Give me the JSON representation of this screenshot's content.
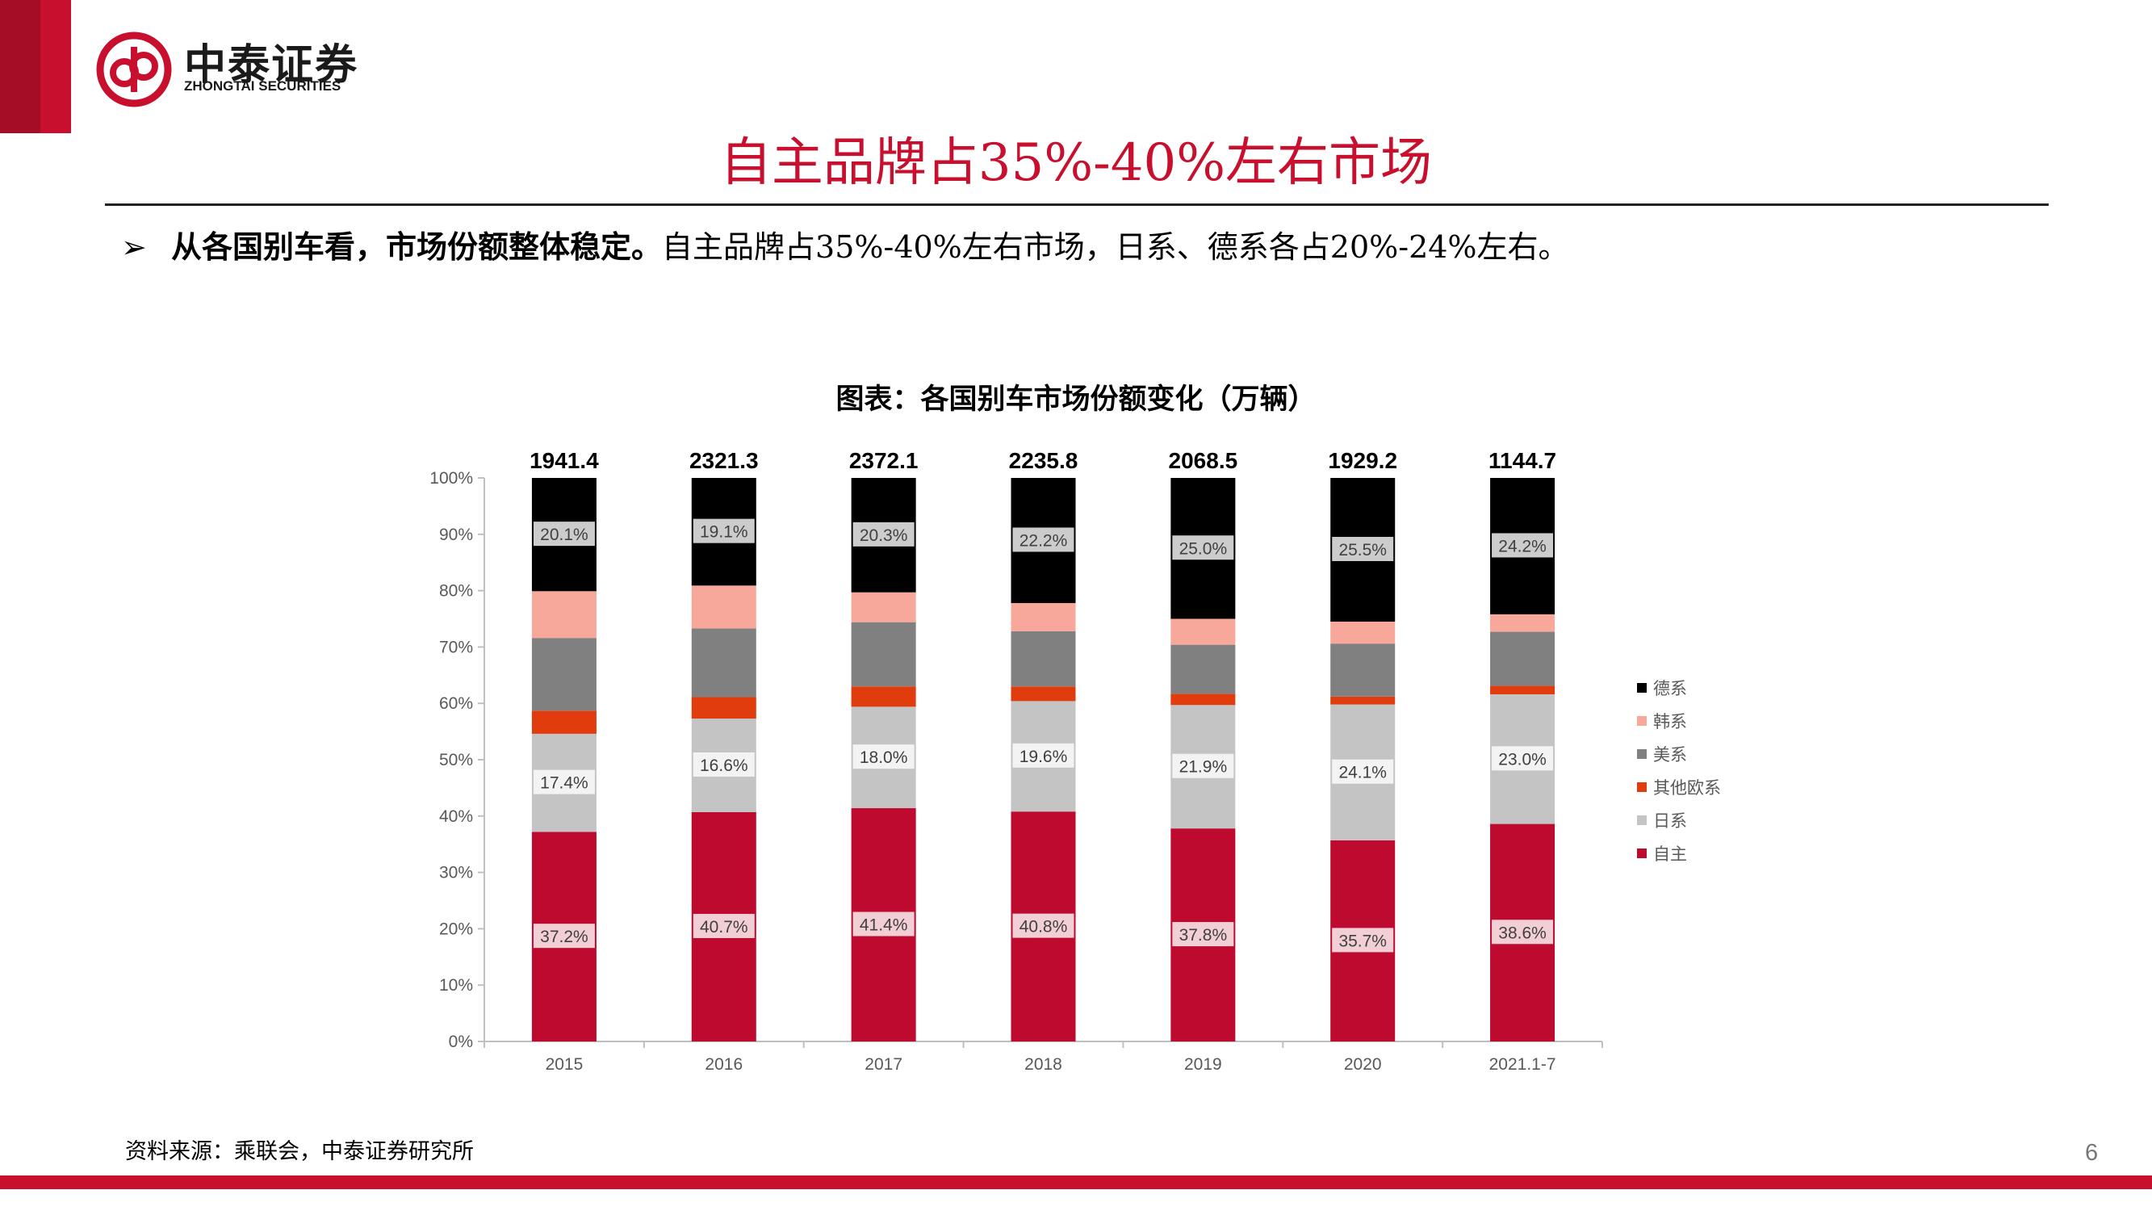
{
  "brand": {
    "name_cn": "中泰证券",
    "name_en": "ZHONGTAI SECURITIES",
    "color": "#c8102e"
  },
  "slide": {
    "title": "自主品牌占35%-40%左右市场",
    "bullet_bold": "从各国别车看，市场份额整体稳定。",
    "bullet_rest": "自主品牌占35%-40%左右市场，日系、德系各占20%-24%左右。",
    "chart_title": "图表：各国别车市场份额变化（万辆）",
    "source": "资料来源：乘联会，中泰证券研究所",
    "page": "6"
  },
  "chart_data": {
    "type": "bar",
    "stacked": "100%",
    "categories": [
      "2015",
      "2016",
      "2017",
      "2018",
      "2019",
      "2020",
      "2021.1-7"
    ],
    "totals": [
      1941.4,
      2321.3,
      2372.1,
      2235.8,
      2068.5,
      1929.2,
      1144.7
    ],
    "ylim": [
      0,
      100
    ],
    "yticks": [
      "0%",
      "10%",
      "20%",
      "30%",
      "40%",
      "50%",
      "60%",
      "70%",
      "80%",
      "90%",
      "100%"
    ],
    "series": [
      {
        "name": "自主",
        "color": "#bf0a30",
        "values": [
          37.2,
          40.7,
          41.4,
          40.8,
          37.8,
          35.7,
          38.6
        ],
        "labels": [
          "37.2%",
          "40.7%",
          "41.4%",
          "40.8%",
          "37.8%",
          "35.7%",
          "38.6%"
        ]
      },
      {
        "name": "日系",
        "color": "#c4c4c4",
        "values": [
          17.4,
          16.6,
          18.0,
          19.6,
          21.9,
          24.1,
          23.0
        ],
        "labels": [
          "17.4%",
          "16.6%",
          "18.0%",
          "19.6%",
          "21.9%",
          "24.1%",
          "23.0%"
        ]
      },
      {
        "name": "其他欧系",
        "color": "#e03c0e",
        "values": [
          4.1,
          3.8,
          3.6,
          2.6,
          2.0,
          1.4,
          1.5
        ]
      },
      {
        "name": "美系",
        "color": "#808080",
        "values": [
          12.9,
          12.2,
          11.4,
          9.8,
          8.7,
          9.4,
          9.6
        ]
      },
      {
        "name": "韩系",
        "color": "#f8a89a",
        "values": [
          8.3,
          7.6,
          5.3,
          5.0,
          4.6,
          3.9,
          3.1
        ]
      },
      {
        "name": "德系",
        "color": "#000000",
        "values": [
          20.1,
          19.1,
          20.3,
          22.2,
          25.0,
          25.5,
          24.2
        ],
        "labels": [
          "20.1%",
          "19.1%",
          "20.3%",
          "22.2%",
          "25.0%",
          "25.5%",
          "24.2%"
        ]
      }
    ],
    "legend_position": "right",
    "grid": false
  }
}
